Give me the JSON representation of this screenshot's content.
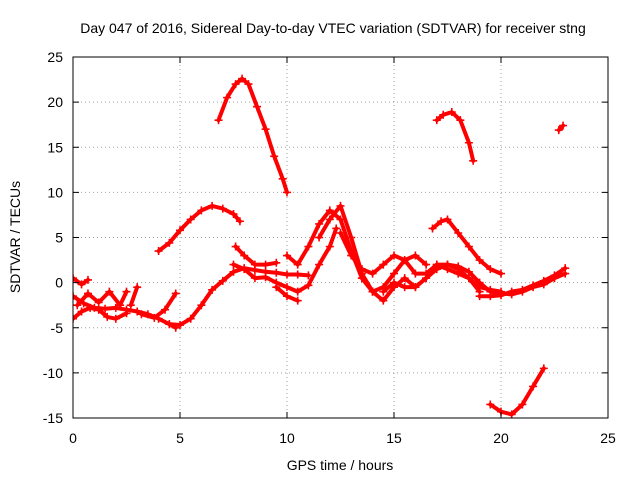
{
  "chart_data": {
    "type": "scatter",
    "title": "Day 047 of 2016, Sidereal Day-to-day VTEC variation (SDTVAR) for receiver stng",
    "xlabel": "GPS time / hours",
    "ylabel": "SDTVAR / TECUs",
    "xlim": [
      0,
      25
    ],
    "ylim": [
      -15,
      25
    ],
    "xticks": [
      0,
      5,
      10,
      15,
      20,
      25
    ],
    "yticks": [
      -15,
      -10,
      -5,
      0,
      5,
      10,
      15,
      20,
      25
    ],
    "xtick_labels": [
      "0",
      "5",
      "10",
      "15",
      "20",
      "25"
    ],
    "ytick_labels": [
      "-15",
      "-10",
      "-5",
      "0",
      "5",
      "10",
      "15",
      "20",
      "25"
    ],
    "grid": true,
    "legend": "none",
    "marker": "+",
    "color": "#ff0000",
    "series": [
      {
        "name": "arc-1",
        "x": [
          6.8,
          7.2,
          7.6,
          7.9,
          8.2,
          8.6,
          9.0,
          9.4,
          9.8,
          10.0
        ],
        "y": [
          18,
          20.5,
          22,
          22.6,
          22,
          19.5,
          17,
          14,
          11.5,
          10
        ]
      },
      {
        "name": "arc-2",
        "x": [
          17.0,
          17.3,
          17.7,
          18.1,
          18.5,
          18.7
        ],
        "y": [
          18,
          18.6,
          18.9,
          18,
          15.5,
          13.5
        ]
      },
      {
        "name": "arc-3",
        "x": [
          22.7,
          22.9
        ],
        "y": [
          16.9,
          17.4
        ]
      },
      {
        "name": "arc-4",
        "x": [
          4.0,
          4.5,
          5.0,
          5.5,
          6.0,
          6.5,
          7.0,
          7.5,
          7.8
        ],
        "y": [
          3.5,
          4.4,
          5.8,
          7.0,
          8.0,
          8.5,
          8.2,
          7.6,
          6.8
        ]
      },
      {
        "name": "arc-5",
        "x": [
          16.8,
          17.2,
          17.5,
          18.0,
          18.5,
          19.0,
          19.5,
          20.0
        ],
        "y": [
          6.0,
          6.8,
          7.0,
          5.5,
          4.0,
          2.5,
          1.5,
          1.0
        ]
      },
      {
        "name": "arc-6",
        "x": [
          19.5,
          20.0,
          20.5,
          21.0,
          21.5,
          22.0
        ],
        "y": [
          -13.5,
          -14.3,
          -14.6,
          -13.5,
          -11.5,
          -9.5
        ]
      },
      {
        "name": "arc-7",
        "x": [
          0,
          0.5,
          1.0,
          1.5,
          2.0,
          2.5,
          3.0,
          3.5,
          4.0,
          4.5,
          4.8
        ],
        "y": [
          -1.5,
          -2.3,
          -2.8,
          -2.9,
          -2.8,
          -3.0,
          -3.2,
          -3.5,
          -4.0,
          -4.6,
          -5.0
        ]
      },
      {
        "name": "arc-8",
        "x": [
          0,
          0.4,
          0.8,
          1.2,
          1.6,
          2.0,
          2.5
        ],
        "y": [
          -4.0,
          -3.2,
          -2.8,
          -3.0,
          -3.8,
          -4.0,
          -3.4
        ]
      },
      {
        "name": "arc-9",
        "x": [
          0,
          0.4,
          0.7
        ],
        "y": [
          0.5,
          -0.2,
          0.3
        ]
      },
      {
        "name": "arc-10",
        "x": [
          0.2,
          0.7,
          1.2,
          1.7,
          2.2,
          2.5
        ],
        "y": [
          -2.5,
          -1.2,
          -2.2,
          -1.0,
          -2.5,
          -1.0
        ]
      },
      {
        "name": "arc-11",
        "x": [
          3.2,
          3.8,
          4.3,
          4.8
        ],
        "y": [
          -3.5,
          -3.9,
          -3.0,
          -1.2
        ]
      },
      {
        "name": "arc-12",
        "x": [
          2.7,
          3.0
        ],
        "y": [
          -2.5,
          -0.5
        ]
      },
      {
        "name": "arc-13",
        "x": [
          4.5,
          5.0,
          5.5,
          6.0,
          6.5,
          7.0,
          7.5,
          8.0,
          8.5,
          9.0,
          9.5,
          10.0,
          10.5,
          11.0
        ],
        "y": [
          -4.6,
          -4.7,
          -4.0,
          -2.5,
          -0.8,
          0.2,
          1.2,
          1.6,
          1.4,
          1.2,
          1.1,
          0.9,
          0.9,
          0.8
        ]
      },
      {
        "name": "arc-14",
        "x": [
          7.5,
          8.0,
          8.5,
          9.0,
          9.5,
          10.0,
          10.5,
          11.0,
          11.5,
          12.0,
          12.3
        ],
        "y": [
          2.0,
          1.5,
          0.5,
          0.6,
          0.0,
          -0.5,
          -1.0,
          -0.3,
          2.0,
          4.0,
          6.0
        ]
      },
      {
        "name": "arc-15",
        "x": [
          7.6,
          8.0,
          8.5,
          9.0,
          9.5
        ],
        "y": [
          4.0,
          3.0,
          2.0,
          2.0,
          2.2
        ]
      },
      {
        "name": "arc-16",
        "x": [
          10.0,
          10.5,
          11.0,
          11.5,
          12.0,
          12.5,
          13.0,
          13.5,
          14.0
        ],
        "y": [
          3.0,
          2.0,
          4.0,
          6.5,
          8.0,
          7.0,
          3.5,
          0.5,
          -1.0
        ]
      },
      {
        "name": "arc-17",
        "x": [
          9.5,
          10.0,
          10.5
        ],
        "y": [
          -0.5,
          -1.5,
          -2.0
        ]
      },
      {
        "name": "arc-18",
        "x": [
          11.5,
          12.0,
          12.5,
          13.0,
          13.5,
          14.0,
          14.5,
          15.0,
          15.5,
          16.0,
          16.5
        ],
        "y": [
          5.0,
          7.0,
          8.5,
          5.0,
          1.0,
          -1.0,
          -0.5,
          1.0,
          2.5,
          3.0,
          2.0
        ]
      },
      {
        "name": "arc-19",
        "x": [
          12.5,
          13.0,
          13.5,
          14.0,
          14.5,
          15.0,
          15.5,
          16.0,
          16.5,
          17.0,
          17.5,
          18.0,
          18.5,
          19.0,
          19.5,
          20.0
        ],
        "y": [
          5.5,
          3.0,
          1.5,
          1.0,
          2.0,
          3.0,
          2.5,
          1.0,
          1.0,
          2.0,
          1.5,
          1.0,
          0.5,
          -0.5,
          -0.8,
          -1.0
        ]
      },
      {
        "name": "arc-20",
        "x": [
          13.5,
          14.0,
          14.5,
          15.0,
          15.5,
          16.0,
          16.5,
          17.0,
          17.5,
          18.0,
          18.5,
          19.0
        ],
        "y": [
          0.5,
          -1.0,
          -2.0,
          -0.5,
          0.5,
          -0.5,
          0.5,
          2.0,
          2.0,
          1.5,
          0.5,
          -1.0
        ]
      },
      {
        "name": "arc-21",
        "x": [
          14.5,
          15.0,
          15.5,
          16.0,
          16.5,
          17.0,
          17.5,
          18.0,
          18.5,
          19.0,
          19.5,
          20.0,
          20.5,
          21.0,
          21.5,
          22.0,
          22.5,
          23.0
        ],
        "y": [
          -1.0,
          0.0,
          -0.5,
          -0.5,
          0.5,
          1.5,
          2.0,
          1.8,
          1.2,
          0.0,
          -1.0,
          -1.2,
          -1.3,
          -1.0,
          -0.5,
          -0.2,
          0.5,
          1.0
        ]
      },
      {
        "name": "arc-22",
        "x": [
          19.0,
          19.5,
          20.0,
          20.5,
          21.0,
          21.5,
          22.0,
          22.5,
          23.0
        ],
        "y": [
          -1.5,
          -1.5,
          -1.4,
          -1.0,
          -0.8,
          -0.3,
          0.2,
          0.8,
          1.6
        ]
      }
    ]
  }
}
